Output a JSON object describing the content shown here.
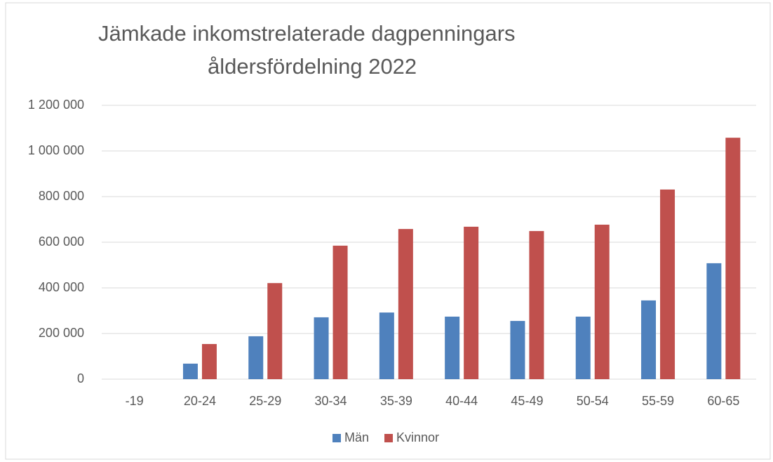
{
  "chart_data": {
    "type": "bar",
    "title": [
      "Jämkade inkomstrelaterade dagpenningars",
      "åldersfördelning 2022"
    ],
    "categories": [
      "-19",
      "20-24",
      "25-29",
      "30-34",
      "35-39",
      "40-44",
      "45-49",
      "50-54",
      "55-59",
      "60-65"
    ],
    "series": [
      {
        "name": "Män",
        "color": "#4f81bd",
        "values": [
          0,
          68000,
          188000,
          271000,
          292000,
          274000,
          255000,
          274000,
          345000,
          508000
        ]
      },
      {
        "name": "Kvinnor",
        "color": "#c0504d",
        "values": [
          0,
          154000,
          421000,
          585000,
          658000,
          668000,
          649000,
          677000,
          831000,
          1058000
        ]
      }
    ],
    "ylim": [
      0,
      1200000
    ],
    "yticks": [
      0,
      {
        "value": 200000,
        "label": "200 000"
      },
      {
        "value": 400000,
        "label": "400 000"
      },
      {
        "value": 600000,
        "label": "600 000"
      },
      {
        "value": 800000,
        "label": "800 000"
      },
      {
        "value": 1000000,
        "label": "1 000 000"
      },
      {
        "value": 1200000,
        "label": "1 200 000"
      }
    ],
    "grid": true,
    "legend": "bottom"
  }
}
